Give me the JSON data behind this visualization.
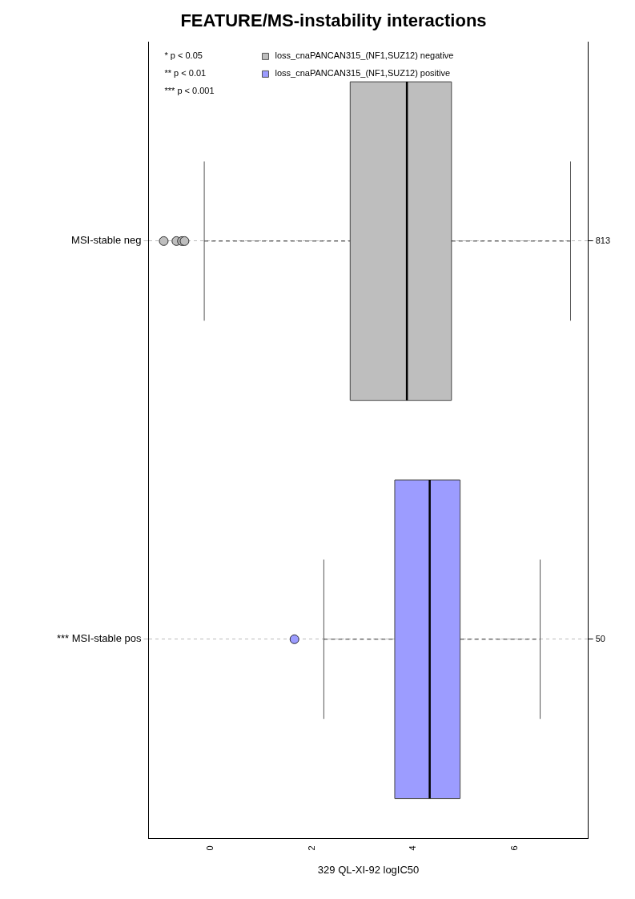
{
  "chart_data": {
    "type": "box",
    "title": "FEATURE/MS-instability interactions",
    "xlabel": "329 QL-XI-92 logIC50",
    "orientation": "horizontal",
    "categories": [
      "MSI-stable neg",
      "*** MSI-stable pos"
    ],
    "y2_categories": [
      "813",
      "50"
    ],
    "xlim": [
      -1.23,
      7.45
    ],
    "xticks": [
      0,
      2,
      4,
      6
    ],
    "series": [
      {
        "name": "loss_cnaPANCAN315_(NF1,SUZ12) negative",
        "color": "#bebebe",
        "boxes": [
          {
            "low": -0.13,
            "q1": 2.75,
            "median": 3.87,
            "q3": 4.75,
            "high": 7.1,
            "outliers": [
              -0.93,
              -0.68,
              -0.57,
              -0.52
            ]
          },
          null
        ]
      },
      {
        "name": "loss_cnaPANCAN315_(NF1,SUZ12) positive",
        "color": "#9c9cff",
        "boxes": [
          null,
          {
            "low": 2.23,
            "q1": 3.63,
            "median": 4.32,
            "q3": 4.92,
            "high": 6.5,
            "outliers": [
              1.65
            ]
          }
        ]
      }
    ],
    "annotations": [
      "* p < 0.05",
      "** p < 0.01",
      "*** p < 0.001"
    ],
    "legend": "top",
    "grid": "y"
  }
}
